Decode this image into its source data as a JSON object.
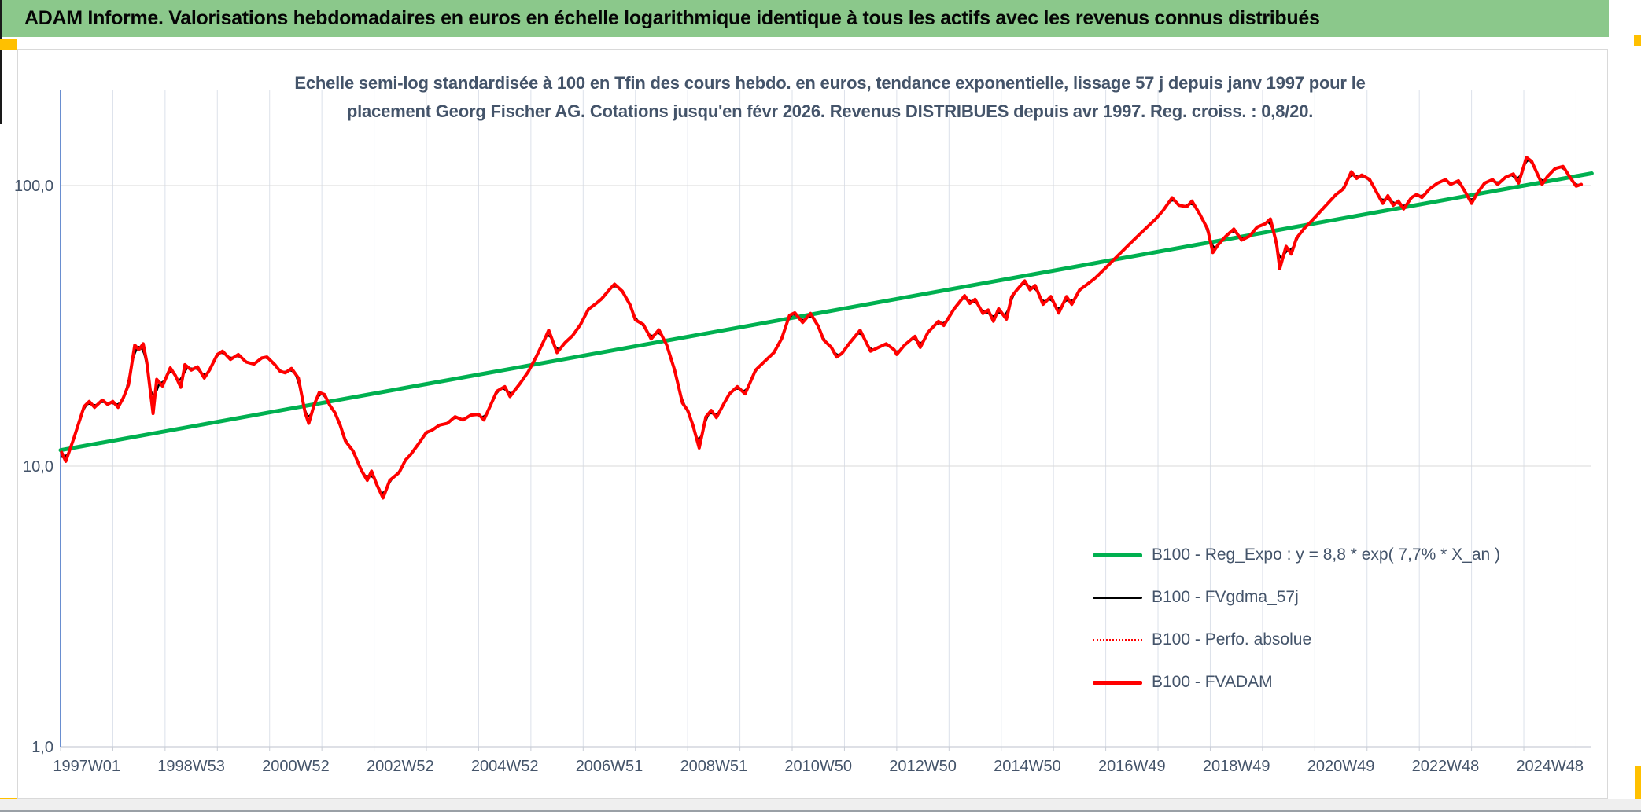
{
  "header": {
    "title": "ADAM Informe. Valorisations hebdomadaires en euros en échelle logarithmique identique à tous les actifs avec les revenus connus distribués"
  },
  "chart_title": {
    "line1": "Echelle semi-log standardisée à 100 en Tfin des cours hebdo. en euros, tendance exponentielle, lissage 57 j depuis janv 1997 pour le",
    "line2": "placement Georg Fischer AG. Cotations jusqu'en févr 2026. Revenus DISTRIBUES depuis avr 1997. Reg. croiss. : 0,8/20."
  },
  "colors": {
    "header_green": "#8BC88B",
    "accent_orange": "#FFC000",
    "axis_blue": "#4472C4",
    "grid_vertical": "#DCE1EA",
    "grid_horizontal": "#D9D9D9",
    "axis_line_gray": "#C9CDD6",
    "label_navy": "#44546A",
    "reg_green": "#00B050",
    "series_red": "#FF0000",
    "series_black": "#000000"
  },
  "chart_data": {
    "type": "line",
    "title": "Echelle semi-log standardisée à 100 en Tfin des cours hebdo. en euros, tendance exponentielle, lissage 57 j depuis janv 1997 pour le placement Georg Fischer AG. Cotations jusqu'en févr 2026. Revenus DISTRIBUES depuis avr 1997. Reg. croiss. : 0,8/20.",
    "legend_position": "inside-right",
    "grid": true,
    "x_axis": {
      "tick_labels": [
        "1997W01",
        "1998W53",
        "2000W52",
        "2002W52",
        "2004W52",
        "2006W51",
        "2008W51",
        "2010W50",
        "2012W50",
        "2014W50",
        "2016W49",
        "2018W49",
        "2020W49",
        "2022W48",
        "2024W48"
      ],
      "label_interval_years": 2,
      "gridline_interval_years": 1,
      "range_years": [
        1997.0,
        2026.35
      ]
    },
    "y_axis": {
      "scale": "log",
      "tick_labels": [
        "100,0",
        "10,0",
        "1,0"
      ],
      "tick_values": [
        100,
        10,
        1
      ],
      "range": [
        1,
        210
      ]
    },
    "series": [
      {
        "id": "reg_expo",
        "name": "B100 - Reg_Expo : y = 8,8 * exp( 7,7% * X_an )",
        "color": "#00B050",
        "line_style": "solid",
        "line_width": 5,
        "points": [
          [
            1997.0,
            11.4
          ],
          [
            2026.3,
            110.5
          ]
        ]
      },
      {
        "id": "fvgdma",
        "name": "B100 - FVgdma_57j",
        "color": "#000000",
        "line_style": "solid",
        "line_width": 2.5,
        "derived_from": "fvadam",
        "smoothing_days": 57
      },
      {
        "id": "perfo",
        "name": "B100 - Perfo. absolue",
        "color": "#FF0000",
        "line_style": "dotted",
        "line_width": 1.5,
        "same_points_as": "fvadam"
      },
      {
        "id": "fvadam",
        "name": "B100 - FVADAM",
        "color": "#FF0000",
        "line_style": "solid",
        "line_width": 4,
        "points": [
          [
            1997.02,
            11.2
          ],
          [
            1997.1,
            10.4
          ],
          [
            1997.25,
            12.5
          ],
          [
            1997.45,
            16.3
          ],
          [
            1997.55,
            17.0
          ],
          [
            1997.65,
            16.2
          ],
          [
            1997.8,
            17.2
          ],
          [
            1997.9,
            16.6
          ],
          [
            1998.0,
            17.0
          ],
          [
            1998.1,
            16.2
          ],
          [
            1998.2,
            17.5
          ],
          [
            1998.3,
            19.5
          ],
          [
            1998.42,
            27.0
          ],
          [
            1998.5,
            26.0
          ],
          [
            1998.58,
            27.3
          ],
          [
            1998.65,
            23.5
          ],
          [
            1998.77,
            15.4
          ],
          [
            1998.84,
            20.4
          ],
          [
            1998.95,
            19.3
          ],
          [
            1999.1,
            22.4
          ],
          [
            1999.2,
            21.0
          ],
          [
            1999.3,
            19.1
          ],
          [
            1999.38,
            23.0
          ],
          [
            1999.5,
            22.0
          ],
          [
            1999.62,
            22.6
          ],
          [
            1999.75,
            20.6
          ],
          [
            1999.85,
            22.0
          ],
          [
            2000.0,
            25.0
          ],
          [
            2000.1,
            25.7
          ],
          [
            2000.25,
            24.0
          ],
          [
            2000.4,
            25.0
          ],
          [
            2000.55,
            23.5
          ],
          [
            2000.7,
            23.1
          ],
          [
            2000.85,
            24.3
          ],
          [
            2000.95,
            24.5
          ],
          [
            2001.1,
            23.0
          ],
          [
            2001.2,
            21.8
          ],
          [
            2001.3,
            21.5
          ],
          [
            2001.42,
            22.3
          ],
          [
            2001.55,
            20.6
          ],
          [
            2001.68,
            15.5
          ],
          [
            2001.75,
            14.2
          ],
          [
            2001.85,
            16.5
          ],
          [
            2001.95,
            18.3
          ],
          [
            2002.05,
            18.0
          ],
          [
            2002.15,
            16.5
          ],
          [
            2002.25,
            15.5
          ],
          [
            2002.35,
            14.0
          ],
          [
            2002.45,
            12.3
          ],
          [
            2002.6,
            11.3
          ],
          [
            2002.75,
            9.7
          ],
          [
            2002.87,
            8.9
          ],
          [
            2002.95,
            9.6
          ],
          [
            2003.05,
            8.6
          ],
          [
            2003.17,
            7.7
          ],
          [
            2003.3,
            8.9
          ],
          [
            2003.48,
            9.5
          ],
          [
            2003.6,
            10.5
          ],
          [
            2003.7,
            11.0
          ],
          [
            2003.85,
            12.0
          ],
          [
            2004.0,
            13.2
          ],
          [
            2004.1,
            13.4
          ],
          [
            2004.25,
            14.0
          ],
          [
            2004.4,
            14.2
          ],
          [
            2004.55,
            15.0
          ],
          [
            2004.7,
            14.6
          ],
          [
            2004.85,
            15.2
          ],
          [
            2005.0,
            15.3
          ],
          [
            2005.1,
            14.6
          ],
          [
            2005.35,
            18.5
          ],
          [
            2005.5,
            19.2
          ],
          [
            2005.6,
            17.7
          ],
          [
            2005.8,
            19.8
          ],
          [
            2005.95,
            21.7
          ],
          [
            2006.1,
            24.5
          ],
          [
            2006.25,
            28.0
          ],
          [
            2006.34,
            30.5
          ],
          [
            2006.5,
            25.4
          ],
          [
            2006.65,
            27.5
          ],
          [
            2006.8,
            29.2
          ],
          [
            2006.95,
            32.0
          ],
          [
            2007.1,
            36.2
          ],
          [
            2007.25,
            38.0
          ],
          [
            2007.35,
            39.4
          ],
          [
            2007.5,
            42.5
          ],
          [
            2007.6,
            44.5
          ],
          [
            2007.75,
            42.0
          ],
          [
            2007.9,
            37.5
          ],
          [
            2008.0,
            33.2
          ],
          [
            2008.15,
            32.0
          ],
          [
            2008.3,
            28.4
          ],
          [
            2008.45,
            30.6
          ],
          [
            2008.6,
            27.0
          ],
          [
            2008.75,
            22.0
          ],
          [
            2008.9,
            16.8
          ],
          [
            2009.0,
            15.8
          ],
          [
            2009.1,
            14.0
          ],
          [
            2009.22,
            11.6
          ],
          [
            2009.35,
            15.0
          ],
          [
            2009.45,
            15.8
          ],
          [
            2009.55,
            14.9
          ],
          [
            2009.7,
            16.8
          ],
          [
            2009.8,
            18.1
          ],
          [
            2009.95,
            19.2
          ],
          [
            2010.1,
            18.1
          ],
          [
            2010.3,
            22.0
          ],
          [
            2010.5,
            23.9
          ],
          [
            2010.65,
            25.4
          ],
          [
            2010.8,
            28.5
          ],
          [
            2010.95,
            34.5
          ],
          [
            2011.05,
            35.2
          ],
          [
            2011.2,
            32.5
          ],
          [
            2011.35,
            35.0
          ],
          [
            2011.5,
            31.5
          ],
          [
            2011.6,
            28.2
          ],
          [
            2011.75,
            26.5
          ],
          [
            2011.85,
            24.5
          ],
          [
            2011.95,
            25.2
          ],
          [
            2012.1,
            27.5
          ],
          [
            2012.3,
            30.5
          ],
          [
            2012.5,
            25.7
          ],
          [
            2012.65,
            26.5
          ],
          [
            2012.8,
            27.3
          ],
          [
            2012.95,
            26.0
          ],
          [
            2013.0,
            25.0
          ],
          [
            2013.15,
            27.0
          ],
          [
            2013.25,
            28.0
          ],
          [
            2013.35,
            29.0
          ],
          [
            2013.45,
            26.5
          ],
          [
            2013.6,
            30.0
          ],
          [
            2013.7,
            31.4
          ],
          [
            2013.8,
            32.8
          ],
          [
            2013.9,
            31.7
          ],
          [
            2014.1,
            36.4
          ],
          [
            2014.3,
            40.5
          ],
          [
            2014.4,
            38.0
          ],
          [
            2014.5,
            39.3
          ],
          [
            2014.65,
            35.0
          ],
          [
            2014.75,
            36.0
          ],
          [
            2014.85,
            32.8
          ],
          [
            2014.95,
            36.4
          ],
          [
            2015.1,
            33.4
          ],
          [
            2015.2,
            40.2
          ],
          [
            2015.3,
            42.5
          ],
          [
            2015.45,
            45.7
          ],
          [
            2015.55,
            42.5
          ],
          [
            2015.65,
            44.0
          ],
          [
            2015.8,
            37.7
          ],
          [
            2015.95,
            40.2
          ],
          [
            2016.1,
            35.1
          ],
          [
            2016.25,
            40.2
          ],
          [
            2016.35,
            37.7
          ],
          [
            2016.5,
            42.5
          ],
          [
            2016.65,
            44.5
          ],
          [
            2016.8,
            46.8
          ],
          [
            2017.0,
            50.9
          ],
          [
            2017.25,
            56.7
          ],
          [
            2017.5,
            63.0
          ],
          [
            2017.75,
            69.9
          ],
          [
            2017.95,
            75.8
          ],
          [
            2018.1,
            81.6
          ],
          [
            2018.27,
            90.5
          ],
          [
            2018.4,
            85.0
          ],
          [
            2018.55,
            84.0
          ],
          [
            2018.65,
            88.0
          ],
          [
            2018.8,
            79.0
          ],
          [
            2018.95,
            69.9
          ],
          [
            2019.05,
            57.7
          ],
          [
            2019.15,
            61.5
          ],
          [
            2019.3,
            66.0
          ],
          [
            2019.45,
            70.0
          ],
          [
            2019.6,
            63.9
          ],
          [
            2019.75,
            66.0
          ],
          [
            2019.9,
            71.2
          ],
          [
            2020.05,
            73.0
          ],
          [
            2020.15,
            76.0
          ],
          [
            2020.27,
            62.0
          ],
          [
            2020.33,
            50.5
          ],
          [
            2020.45,
            60.7
          ],
          [
            2020.55,
            57.0
          ],
          [
            2020.65,
            64.9
          ],
          [
            2020.8,
            70.4
          ],
          [
            2020.95,
            75.1
          ],
          [
            2021.1,
            80.6
          ],
          [
            2021.25,
            86.4
          ],
          [
            2021.4,
            92.7
          ],
          [
            2021.55,
            97.4
          ],
          [
            2021.7,
            112.0
          ],
          [
            2021.8,
            106.0
          ],
          [
            2021.9,
            109.0
          ],
          [
            2022.05,
            105.0
          ],
          [
            2022.2,
            93.4
          ],
          [
            2022.3,
            86.4
          ],
          [
            2022.4,
            92.0
          ],
          [
            2022.5,
            85.0
          ],
          [
            2022.6,
            88.0
          ],
          [
            2022.7,
            82.5
          ],
          [
            2022.85,
            90.6
          ],
          [
            2022.95,
            93.0
          ],
          [
            2023.05,
            90.6
          ],
          [
            2023.2,
            97.4
          ],
          [
            2023.35,
            102.0
          ],
          [
            2023.5,
            105.0
          ],
          [
            2023.6,
            101.0
          ],
          [
            2023.75,
            104.0
          ],
          [
            2023.9,
            93.4
          ],
          [
            2024.0,
            86.4
          ],
          [
            2024.1,
            93.4
          ],
          [
            2024.25,
            102.0
          ],
          [
            2024.4,
            105.0
          ],
          [
            2024.5,
            101.0
          ],
          [
            2024.65,
            107.0
          ],
          [
            2024.8,
            110.0
          ],
          [
            2024.9,
            102.0
          ],
          [
            2025.05,
            126.0
          ],
          [
            2025.15,
            122.0
          ],
          [
            2025.35,
            101.0
          ],
          [
            2025.45,
            107.5
          ],
          [
            2025.6,
            115.0
          ],
          [
            2025.75,
            117.0
          ],
          [
            2025.9,
            106.0
          ],
          [
            2026.0,
            99.5
          ],
          [
            2026.1,
            101.0
          ]
        ]
      }
    ]
  }
}
